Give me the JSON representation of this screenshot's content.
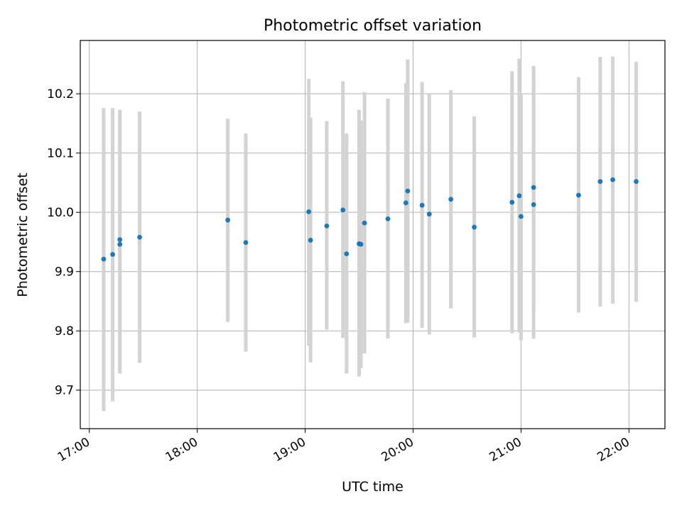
{
  "chart_data": {
    "type": "scatter",
    "title": "Photometric offset variation",
    "xlabel": "UTC time",
    "ylabel": "Photometric offset",
    "x_tick_labels": [
      "17:00",
      "18:00",
      "19:00",
      "20:00",
      "21:00",
      "22:00"
    ],
    "y_tick_labels": [
      "9.7",
      "9.8",
      "9.9",
      "10.0",
      "10.1",
      "10.2"
    ],
    "xlim": [
      "16:55",
      "22:20"
    ],
    "ylim": [
      9.635,
      10.29
    ],
    "grid": true,
    "colors": {
      "point": "#1f77b4",
      "errorbar": "#d3d3d3",
      "grid": "#b0b0b0"
    },
    "points": [
      {
        "x": "17:08",
        "y": 9.921,
        "lo": 9.665,
        "hi": 10.176
      },
      {
        "x": "17:13",
        "y": 9.929,
        "lo": 9.681,
        "hi": 10.176
      },
      {
        "x": "17:17",
        "y": 9.954,
        "lo": 9.732,
        "hi": 10.173
      },
      {
        "x": "17:17",
        "y": 9.946,
        "lo": 9.728,
        "hi": 10.172
      },
      {
        "x": "17:28",
        "y": 9.958,
        "lo": 9.746,
        "hi": 10.17
      },
      {
        "x": "18:17",
        "y": 9.987,
        "lo": 9.815,
        "hi": 10.158
      },
      {
        "x": "18:27",
        "y": 9.949,
        "lo": 9.765,
        "hi": 10.133
      },
      {
        "x": "19:02",
        "y": 10.001,
        "lo": 9.775,
        "hi": 10.225
      },
      {
        "x": "19:03",
        "y": 9.953,
        "lo": 9.747,
        "hi": 10.16
      },
      {
        "x": "19:12",
        "y": 9.977,
        "lo": 9.802,
        "hi": 10.154
      },
      {
        "x": "19:21",
        "y": 10.004,
        "lo": 9.788,
        "hi": 10.221
      },
      {
        "x": "19:23",
        "y": 9.93,
        "lo": 9.728,
        "hi": 10.133
      },
      {
        "x": "19:30",
        "y": 9.947,
        "lo": 9.723,
        "hi": 10.173
      },
      {
        "x": "19:31",
        "y": 9.946,
        "lo": 9.737,
        "hi": 10.155
      },
      {
        "x": "19:33",
        "y": 9.982,
        "lo": 9.762,
        "hi": 10.203
      },
      {
        "x": "19:46",
        "y": 9.989,
        "lo": 9.787,
        "hi": 10.192
      },
      {
        "x": "19:56",
        "y": 10.016,
        "lo": 9.813,
        "hi": 10.218
      },
      {
        "x": "19:57",
        "y": 10.036,
        "lo": 9.814,
        "hi": 10.258
      },
      {
        "x": "20:05",
        "y": 10.012,
        "lo": 9.805,
        "hi": 10.22
      },
      {
        "x": "20:09",
        "y": 9.997,
        "lo": 9.794,
        "hi": 10.2
      },
      {
        "x": "20:21",
        "y": 10.022,
        "lo": 9.838,
        "hi": 10.206
      },
      {
        "x": "20:34",
        "y": 9.975,
        "lo": 9.789,
        "hi": 10.162
      },
      {
        "x": "20:55",
        "y": 10.017,
        "lo": 9.796,
        "hi": 10.238
      },
      {
        "x": "20:59",
        "y": 10.028,
        "lo": 9.797,
        "hi": 10.259
      },
      {
        "x": "21:00",
        "y": 9.993,
        "lo": 9.784,
        "hi": 10.201
      },
      {
        "x": "21:07",
        "y": 10.013,
        "lo": 9.787,
        "hi": 10.24
      },
      {
        "x": "21:07",
        "y": 10.042,
        "lo": 9.838,
        "hi": 10.247
      },
      {
        "x": "21:32",
        "y": 10.029,
        "lo": 9.831,
        "hi": 10.228
      },
      {
        "x": "21:44",
        "y": 10.052,
        "lo": 9.841,
        "hi": 10.262
      },
      {
        "x": "21:51",
        "y": 10.055,
        "lo": 9.846,
        "hi": 10.263
      },
      {
        "x": "22:04",
        "y": 10.052,
        "lo": 9.849,
        "hi": 10.254
      }
    ]
  }
}
